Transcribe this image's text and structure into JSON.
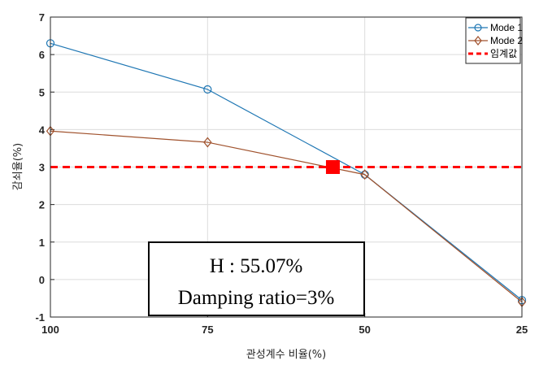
{
  "chart_data": {
    "type": "line",
    "x_direction": "reversed",
    "categories": [
      "100",
      "75",
      "50",
      "25"
    ],
    "x": [
      100,
      75,
      50,
      25
    ],
    "xlim": [
      100,
      25
    ],
    "ylim": [
      -1,
      7
    ],
    "yticks": [
      -1,
      0,
      1,
      2,
      3,
      4,
      5,
      6,
      7
    ],
    "xticks": [
      100,
      75,
      50,
      25
    ],
    "grid": true,
    "xlabel": "관성계수 비율(%)",
    "ylabel": "감쇠율(%)",
    "legend_position": "top-right",
    "series": [
      {
        "name": "Mode 1",
        "values": [
          6.3,
          5.07,
          2.8,
          -0.55
        ],
        "color": "#1f77b4",
        "marker": "circle"
      },
      {
        "name": "Mode 2",
        "values": [
          3.96,
          3.66,
          2.8,
          -0.6
        ],
        "color": "#a0522d",
        "marker": "diamond"
      }
    ],
    "threshold": {
      "name": "임계값",
      "value": 3,
      "color": "#ff0000",
      "style": "dashed"
    },
    "highlight_point": {
      "x": 55.07,
      "y": 3,
      "color": "#ff0000",
      "marker": "square"
    },
    "annotation": {
      "lines": [
        "H : 55.07%",
        "Damping ratio=3%"
      ]
    }
  }
}
